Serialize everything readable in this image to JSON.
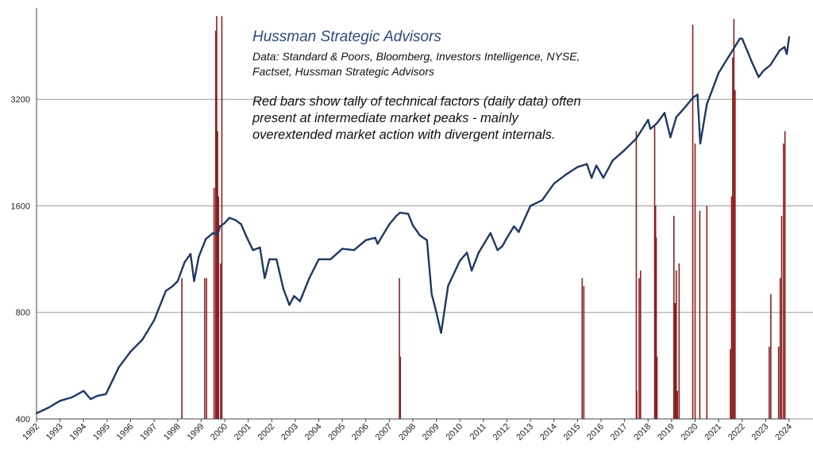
{
  "chart_data": {
    "type": "line",
    "title": "Hussman Strategic Advisors",
    "subtitle": "Data: Standard & Poors, Bloomberg, Investors Intelligence, NYSE, Factset,  Hussman Strategic Advisors",
    "annotation": "Red bars show tally of technical factors (daily data) often present at intermediate market peaks - mainly overextended market action with divergent internals.",
    "y_scale": "log",
    "ylim": [
      400,
      5800
    ],
    "y_ticks": [
      400,
      800,
      1600,
      3200
    ],
    "x_ticks": [
      "1992",
      "1993",
      "1994",
      "1995",
      "1996",
      "1997",
      "1998",
      "1999",
      "2000",
      "2001",
      "2002",
      "2003",
      "2004",
      "2005",
      "2006",
      "2007",
      "2008",
      "2009",
      "2010",
      "2011",
      "2012",
      "2013",
      "2014",
      "2015",
      "2016",
      "2017",
      "2018",
      "2019",
      "2020",
      "2021",
      "2022",
      "2023",
      "2024"
    ],
    "xlim": [
      1992.0,
      2024.0
    ],
    "grid": "horizontal",
    "series": [
      {
        "kind": "line",
        "color": "#1f3864",
        "x": [
          1992.0,
          1992.5,
          1993.0,
          1993.5,
          1994.0,
          1994.3,
          1994.6,
          1994.95,
          1995.5,
          1996.0,
          1996.5,
          1997.0,
          1997.5,
          1997.8,
          1998.0,
          1998.3,
          1998.55,
          1998.7,
          1998.9,
          1999.2,
          1999.5,
          1999.7,
          1999.8,
          2000.0,
          2000.2,
          2000.45,
          2000.7,
          2000.9,
          2001.2,
          2001.5,
          2001.7,
          2001.9,
          2002.2,
          2002.5,
          2002.75,
          2002.95,
          2003.2,
          2003.6,
          2004.0,
          2004.5,
          2005.0,
          2005.5,
          2006.0,
          2006.4,
          2006.5,
          2007.0,
          2007.3,
          2007.45,
          2007.8,
          2008.0,
          2008.3,
          2008.6,
          2008.8,
          2008.9,
          2009.0,
          2009.2,
          2009.5,
          2010.0,
          2010.3,
          2010.5,
          2010.8,
          2011.3,
          2011.6,
          2011.8,
          2012.0,
          2012.3,
          2012.5,
          2013.0,
          2013.5,
          2014.0,
          2014.5,
          2015.0,
          2015.4,
          2015.6,
          2015.8,
          2016.1,
          2016.5,
          2017.0,
          2017.5,
          2018.0,
          2018.1,
          2018.4,
          2018.7,
          2018.95,
          2019.2,
          2019.5,
          2019.9,
          2020.1,
          2020.22,
          2020.5,
          2020.8,
          2021.0,
          2021.5,
          2021.9,
          2022.0,
          2022.4,
          2022.7,
          2022.9,
          2023.2,
          2023.6,
          2023.8,
          2023.9,
          2024.0
        ],
        "y": [
          415,
          430,
          450,
          460,
          480,
          455,
          465,
          470,
          560,
          620,
          670,
          760,
          920,
          950,
          980,
          1110,
          1170,
          980,
          1150,
          1290,
          1340,
          1330,
          1400,
          1430,
          1480,
          1460,
          1420,
          1320,
          1200,
          1220,
          1000,
          1130,
          1130,
          930,
          840,
          890,
          860,
          1000,
          1130,
          1130,
          1210,
          1200,
          1280,
          1300,
          1250,
          1420,
          1500,
          1530,
          1520,
          1410,
          1320,
          1280,
          900,
          850,
          800,
          700,
          950,
          1120,
          1180,
          1050,
          1180,
          1340,
          1200,
          1230,
          1300,
          1400,
          1350,
          1600,
          1660,
          1850,
          1960,
          2060,
          2100,
          1920,
          2080,
          1920,
          2150,
          2300,
          2480,
          2800,
          2640,
          2750,
          2930,
          2500,
          2850,
          3000,
          3230,
          3300,
          2400,
          3100,
          3500,
          3800,
          4300,
          4750,
          4750,
          4100,
          3700,
          3850,
          4000,
          4400,
          4500,
          4300,
          4800
        ]
      }
    ],
    "bars": {
      "kind": "bar",
      "color": "#8b2020",
      "note": "values are bar heights in y-axis units",
      "x": [
        1998.18,
        1999.15,
        1999.23,
        1999.55,
        1999.62,
        1999.66,
        1999.7,
        1999.74,
        1999.83,
        1999.88,
        2007.43,
        2007.47,
        2015.2,
        2015.27,
        2017.5,
        2017.52,
        2017.62,
        2017.68,
        2018.28,
        2018.32,
        2018.35,
        2018.38,
        2019.1,
        2019.15,
        2019.2,
        2019.25,
        2019.32,
        2019.9,
        2020.0,
        2020.2,
        2020.5,
        2021.5,
        2021.55,
        2021.6,
        2021.65,
        2021.7,
        2023.15,
        2023.22,
        2023.55,
        2023.62,
        2023.68,
        2023.76,
        2023.82
      ],
      "y": [
        1000,
        1000,
        1000,
        1800,
        5000,
        5500,
        2600,
        1700,
        1100,
        5500,
        1000,
        600,
        1000,
        950,
        2600,
        480,
        1000,
        1050,
        2700,
        1600,
        1300,
        600,
        1500,
        850,
        1050,
        480,
        1100,
        5200,
        2400,
        1550,
        1600,
        630,
        1700,
        4200,
        5400,
        3400,
        640,
        900,
        640,
        1000,
        1500,
        2400,
        2600
      ]
    }
  }
}
